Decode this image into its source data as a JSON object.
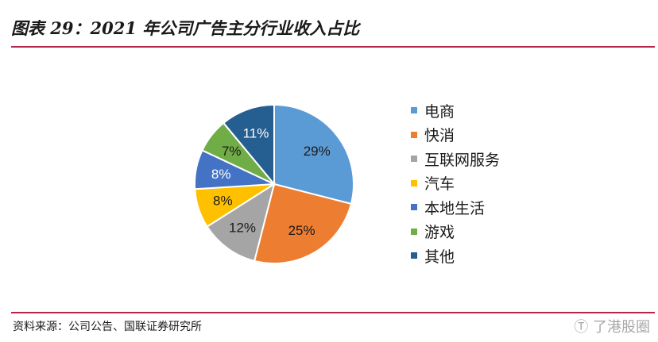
{
  "title": "图表 29：2021 年公司广告主分行业收入占比",
  "source": "资料来源：公司公告、国联证券研究所",
  "watermark": "Ⓣ 了港股圈",
  "chart_data": {
    "type": "pie",
    "title": "",
    "legend_position": "right",
    "categories": [
      "电商",
      "快消",
      "互联网服务",
      "汽车",
      "本地生活",
      "游戏",
      "其他"
    ],
    "values": [
      29,
      25,
      12,
      8,
      8,
      7,
      11
    ],
    "labels": [
      "29%",
      "25%",
      "12%",
      "8%",
      "8%",
      "7%",
      "11%"
    ],
    "colors": [
      "#5b9bd5",
      "#ed7d31",
      "#a5a5a5",
      "#ffc000",
      "#4472c4",
      "#70ad47",
      "#255e91"
    ],
    "label_colors": [
      "#1a1a1a",
      "#1a1a1a",
      "#1a1a1a",
      "#1a1a1a",
      "#ffffff",
      "#1a1a1a",
      "#ffffff"
    ]
  }
}
